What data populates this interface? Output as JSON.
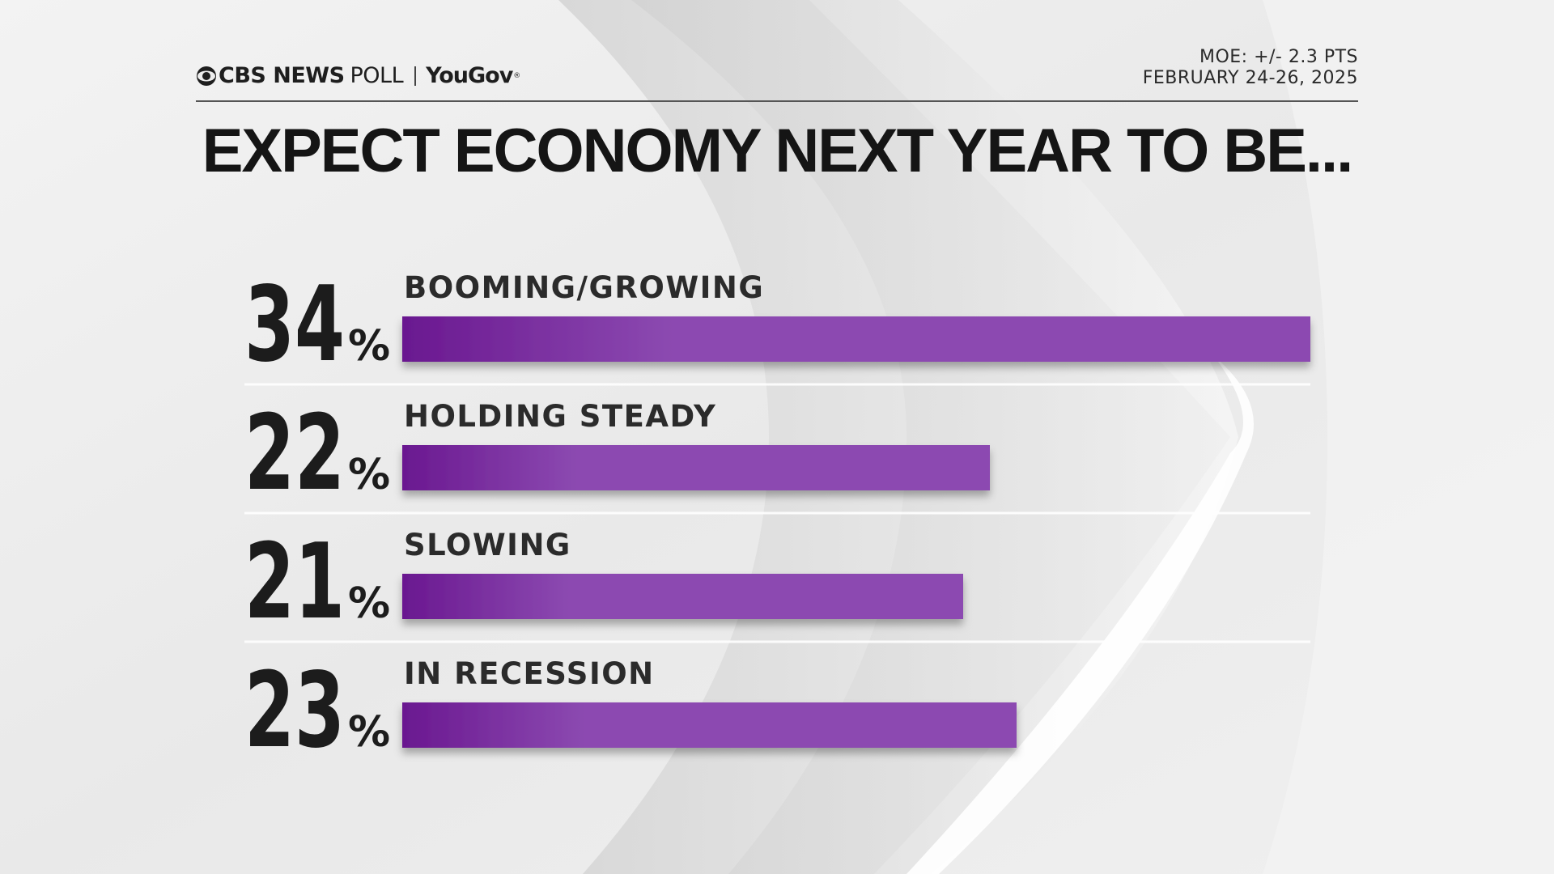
{
  "header": {
    "brand_name": "CBS NEWS",
    "brand_poll": "POLL",
    "partner": "YouGov",
    "partner_mark": "®",
    "moe": "MOE: +/- 2.3 PTS",
    "dates": "FEBRUARY 24-26, 2025"
  },
  "title": "EXPECT ECONOMY NEXT YEAR TO BE...",
  "colors": {
    "bar_dark": "#6a1890",
    "bar_light": "#8c4ab1",
    "text": "#1c1c1c",
    "background": "#ececec"
  },
  "chart_data": {
    "type": "bar",
    "orientation": "horizontal",
    "title": "EXPECT ECONOMY NEXT YEAR TO BE...",
    "categories": [
      "BOOMING/GROWING",
      "HOLDING STEADY",
      "SLOWING",
      "IN RECESSION"
    ],
    "values": [
      34,
      22,
      21,
      23
    ],
    "value_labels": [
      "34",
      "22",
      "21",
      "23"
    ],
    "unit": "%",
    "xlim": [
      0,
      34
    ],
    "xlabel": "",
    "ylabel": "",
    "grid": false,
    "legend": "none"
  }
}
